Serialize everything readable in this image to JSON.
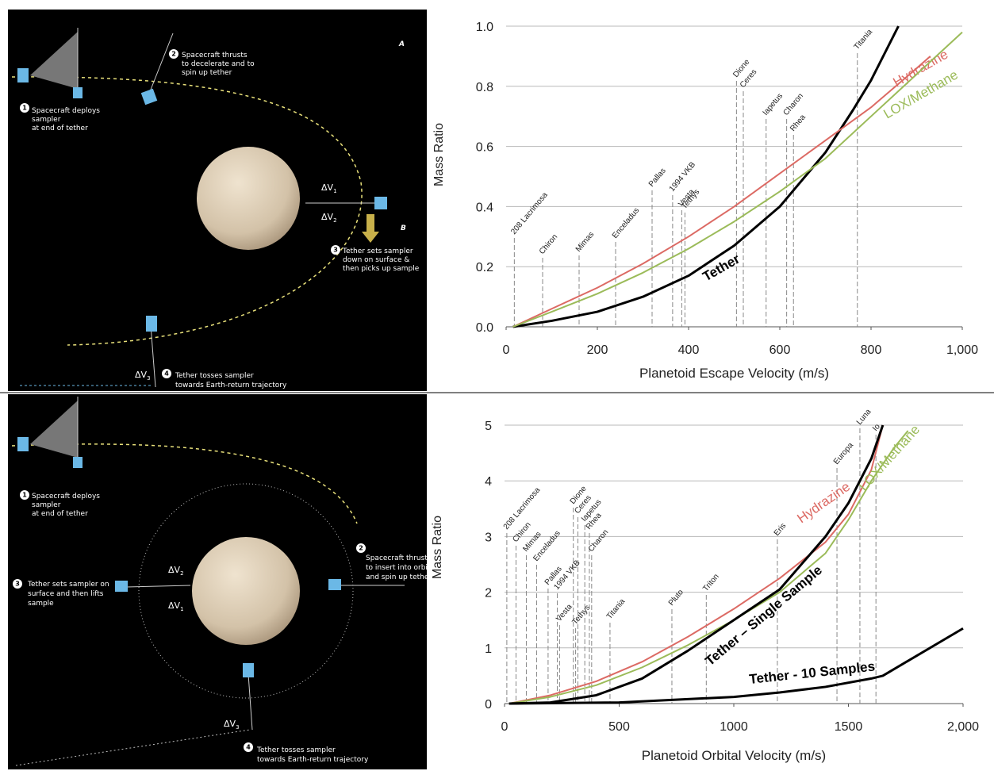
{
  "panel_labels": [
    "A",
    "B"
  ],
  "diagrams": [
    {
      "steps": [
        {
          "number": "1",
          "lines": [
            "Spacecraft deploys",
            "sampler",
            "at end of tether"
          ]
        },
        {
          "number": "2",
          "lines": [
            "Spacecraft thrusts",
            "to decelerate and to",
            "spin up tether"
          ]
        },
        {
          "number": "3",
          "lines": [
            "Tether sets sampler",
            "down on surface &",
            "then picks up sample"
          ]
        },
        {
          "number": "4",
          "lines": [
            "Tether tosses sampler",
            "towards Earth-return trajectory"
          ]
        }
      ],
      "delta_v": [
        {
          "base": "ΔV",
          "sub": "1"
        },
        {
          "base": "ΔV",
          "sub": "2"
        },
        {
          "base": "ΔV",
          "sub": "3"
        }
      ]
    },
    {
      "steps": [
        {
          "number": "1",
          "lines": [
            "Spacecraft deploys",
            "sampler",
            "at end of tether"
          ]
        },
        {
          "number": "2",
          "lines": [
            "Spacecraft thrusts",
            "to insert into orbit",
            "and spin up tether"
          ]
        },
        {
          "number": "3",
          "lines": [
            "Tether sets sampler on",
            "surface and then lifts",
            "sample"
          ]
        },
        {
          "number": "4",
          "lines": [
            "Tether tosses sampler",
            "towards Earth-return trajectory"
          ]
        }
      ],
      "delta_v": [
        {
          "base": "ΔV",
          "sub": "2"
        },
        {
          "base": "ΔV",
          "sub": "1"
        },
        {
          "base": "ΔV",
          "sub": "3"
        }
      ]
    }
  ],
  "chart_data": [
    {
      "type": "line",
      "xlabel": "Planetoid Escape Velocity (m/s)",
      "ylabel": "Mass Ratio",
      "xlim": [
        0,
        1000
      ],
      "ylim": [
        0,
        1.0
      ],
      "xticks": [
        0,
        200,
        400,
        600,
        800,
        {
          "value": 1000,
          "label": "1,000"
        }
      ],
      "yticks": [
        {
          "value": 0,
          "label": "0.0"
        },
        0.2,
        0.4,
        0.6,
        0.8,
        {
          "value": 1.0,
          "label": "1.0"
        }
      ],
      "grid": true,
      "series": [
        {
          "name": "Tether",
          "color": "#000000",
          "x": [
            15,
            100,
            200,
            300,
            400,
            500,
            600,
            700,
            760,
            800,
            860
          ],
          "values": [
            0,
            0.02,
            0.05,
            0.1,
            0.17,
            0.27,
            0.4,
            0.58,
            0.72,
            0.82,
            1.0
          ]
        },
        {
          "name": "Hydrazine",
          "color": "#dc6a64",
          "x": [
            15,
            100,
            200,
            300,
            400,
            500,
            600,
            700,
            800,
            900,
            930
          ],
          "values": [
            0,
            0.06,
            0.13,
            0.21,
            0.3,
            0.4,
            0.51,
            0.62,
            0.73,
            0.86,
            0.9
          ]
        },
        {
          "name": "LOX/Methane",
          "color": "#9bbb59",
          "x": [
            15,
            100,
            200,
            300,
            400,
            500,
            600,
            700,
            800,
            900,
            1000
          ],
          "values": [
            0,
            0.05,
            0.11,
            0.18,
            0.26,
            0.35,
            0.45,
            0.56,
            0.7,
            0.84,
            0.98
          ]
        }
      ],
      "annotations": [
        {
          "text": "208 Lacrimosa",
          "x": 18
        },
        {
          "text": "Chiron",
          "x": 80
        },
        {
          "text": "Mimas",
          "x": 160
        },
        {
          "text": "Enceladus",
          "x": 240
        },
        {
          "text": "Pallas",
          "x": 320
        },
        {
          "text": "1994 VKB",
          "x": 365
        },
        {
          "text": "Vesta",
          "x": 385
        },
        {
          "text": "Tethys",
          "x": 392
        },
        {
          "text": "Dione",
          "x": 505
        },
        {
          "text": "Ceres",
          "x": 520
        },
        {
          "text": "Iapetus",
          "x": 570
        },
        {
          "text": "Charon",
          "x": 615
        },
        {
          "text": "Rhea",
          "x": 630
        },
        {
          "text": "Titania",
          "x": 770
        }
      ]
    },
    {
      "type": "line",
      "xlabel": "Planetoid Orbital Velocity (m/s)",
      "ylabel": "Mass Ratio",
      "xlim": [
        0,
        2000
      ],
      "ylim": [
        0,
        5
      ],
      "xticks": [
        0,
        500,
        1000,
        1500,
        {
          "value": 2000,
          "label": "2,000"
        }
      ],
      "yticks": [
        0,
        1,
        2,
        3,
        4,
        5
      ],
      "grid": true,
      "series": [
        {
          "name": "Hydrazine",
          "color": "#dc6a64",
          "x": [
            20,
            200,
            400,
            600,
            800,
            1000,
            1200,
            1400,
            1500,
            1600,
            1650
          ],
          "values": [
            0,
            0.15,
            0.4,
            0.75,
            1.2,
            1.7,
            2.25,
            2.9,
            3.4,
            4.2,
            5.0
          ]
        },
        {
          "name": "LOX/Methane",
          "color": "#9bbb59",
          "x": [
            20,
            200,
            400,
            600,
            800,
            1000,
            1200,
            1400,
            1500,
            1600,
            1700,
            1760
          ],
          "values": [
            0,
            0.12,
            0.33,
            0.65,
            1.05,
            1.5,
            2.0,
            2.7,
            3.3,
            4.0,
            4.6,
            4.9
          ]
        },
        {
          "name": "Tether – Single Sample",
          "color": "#000000",
          "x": [
            20,
            200,
            400,
            600,
            800,
            1000,
            1200,
            1400,
            1500,
            1600,
            1650
          ],
          "values": [
            0,
            0.02,
            0.15,
            0.45,
            0.95,
            1.5,
            2.05,
            3.0,
            3.6,
            4.4,
            5.0
          ]
        },
        {
          "name": "Tether - 10 Samples",
          "color": "#000000",
          "x": [
            20,
            500,
            1000,
            1200,
            1400,
            1600,
            1650,
            2000
          ],
          "values": [
            0,
            0.02,
            0.12,
            0.2,
            0.3,
            0.45,
            0.5,
            1.35
          ]
        }
      ],
      "annotations": [
        {
          "text": "208 Lacrimosa",
          "x": 10
        },
        {
          "text": "Chiron",
          "x": 50
        },
        {
          "text": "Mimas",
          "x": 95
        },
        {
          "text": "Enceladus",
          "x": 140
        },
        {
          "text": "Pallas",
          "x": 190
        },
        {
          "text": "1994 VKB",
          "x": 230
        },
        {
          "text": "Vesta",
          "x": 240
        },
        {
          "text": "Tethys",
          "x": 310
        },
        {
          "text": "Dione",
          "x": 300
        },
        {
          "text": "Ceres",
          "x": 320
        },
        {
          "text": "Iapetus",
          "x": 350
        },
        {
          "text": "Rhea",
          "x": 370
        },
        {
          "text": "Charon",
          "x": 380
        },
        {
          "text": "Titania",
          "x": 460
        },
        {
          "text": "Pluto",
          "x": 730
        },
        {
          "text": "Triton",
          "x": 880
        },
        {
          "text": "Eris",
          "x": 1190
        },
        {
          "text": "Europa",
          "x": 1450
        },
        {
          "text": "Luna",
          "x": 1550
        },
        {
          "text": "Io",
          "x": 1620
        }
      ]
    }
  ]
}
